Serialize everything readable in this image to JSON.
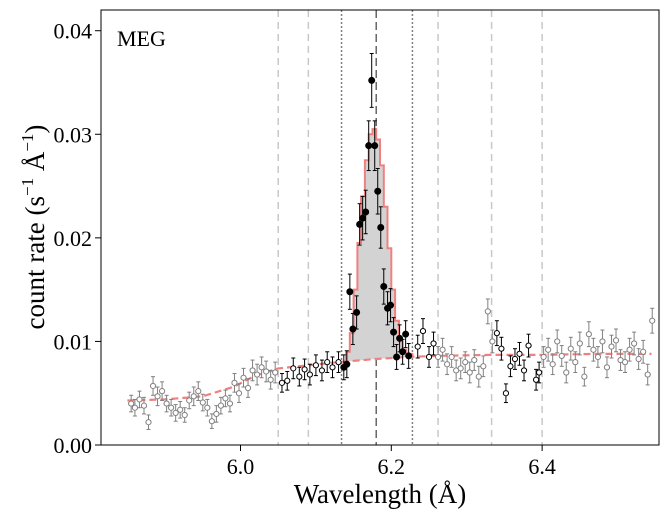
{
  "chart_data": {
    "type": "scatter",
    "panel_label": "MEG",
    "xlabel": "Wavelength (Å)",
    "ylabel_main": "count rate (s",
    "ylabel_sup1": "−1",
    "ylabel_mid": " Å",
    "ylabel_sup2": "−1",
    "ylabel_end": ")",
    "xlim": [
      5.815,
      6.555
    ],
    "ylim": [
      0.0,
      0.042
    ],
    "xticks": [
      6.0,
      6.2,
      6.4
    ],
    "xtick_labels": [
      "6.0",
      "6.2",
      "6.4"
    ],
    "yticks": [
      0.0,
      0.01,
      0.02,
      0.03,
      0.04
    ],
    "ytick_labels": [
      "0.00",
      "0.01",
      "0.02",
      "0.03",
      "0.04"
    ],
    "colors": {
      "axes": "#000000",
      "model": "#f08080",
      "fill": "#d3d3d3",
      "grey_points": "#808080",
      "fit_points": "#000000",
      "vline_light": "#c8c8c8",
      "vline_dotted": "#808080",
      "vline_dashed": "#666666"
    },
    "vlines": [
      {
        "x": 6.05,
        "style": "light-dashed"
      },
      {
        "x": 6.09,
        "style": "light-dashed"
      },
      {
        "x": 6.134,
        "style": "dotted"
      },
      {
        "x": 6.18,
        "style": "dashed"
      },
      {
        "x": 6.228,
        "style": "dotted"
      },
      {
        "x": 6.262,
        "style": "light-dashed"
      },
      {
        "x": 6.333,
        "style": "light-dashed"
      },
      {
        "x": 6.4,
        "style": "light-dashed"
      }
    ],
    "continuum": [
      [
        5.85,
        0.0043
      ],
      [
        5.9,
        0.0044
      ],
      [
        5.95,
        0.0047
      ],
      [
        5.99,
        0.0056
      ],
      [
        6.02,
        0.0067
      ],
      [
        6.05,
        0.0074
      ],
      [
        6.09,
        0.0077
      ],
      [
        6.13,
        0.008
      ],
      [
        6.18,
        0.0083
      ],
      [
        6.22,
        0.0085
      ],
      [
        6.26,
        0.0086
      ],
      [
        6.33,
        0.0087
      ],
      [
        6.4,
        0.0087
      ],
      [
        6.47,
        0.0088
      ],
      [
        6.545,
        0.0088
      ]
    ],
    "line_model": [
      [
        6.134,
        0.008
      ],
      [
        6.14,
        0.009
      ],
      [
        6.145,
        0.0108
      ],
      [
        6.15,
        0.015
      ],
      [
        6.155,
        0.0195
      ],
      [
        6.16,
        0.024
      ],
      [
        6.165,
        0.0275
      ],
      [
        6.17,
        0.03
      ],
      [
        6.175,
        0.0305
      ],
      [
        6.18,
        0.0295
      ],
      [
        6.185,
        0.027
      ],
      [
        6.19,
        0.023
      ],
      [
        6.195,
        0.019
      ],
      [
        6.2,
        0.015
      ],
      [
        6.205,
        0.012
      ],
      [
        6.21,
        0.01
      ],
      [
        6.215,
        0.0092
      ],
      [
        6.22,
        0.0088
      ],
      [
        6.228,
        0.0085
      ]
    ],
    "fit_points": [
      [
        6.055,
        0.006,
        0.0009
      ],
      [
        6.062,
        0.0062,
        0.0009
      ],
      [
        6.07,
        0.0074,
        0.001
      ],
      [
        6.078,
        0.0066,
        0.0009
      ],
      [
        6.085,
        0.0073,
        0.001
      ],
      [
        6.092,
        0.0068,
        0.001
      ],
      [
        6.1,
        0.0077,
        0.001
      ],
      [
        6.108,
        0.0072,
        0.001
      ],
      [
        6.115,
        0.008,
        0.001
      ],
      [
        6.122,
        0.0075,
        0.001
      ],
      [
        6.13,
        0.008,
        0.001
      ],
      [
        6.137,
        0.0075,
        0.0012
      ],
      [
        6.141,
        0.0078,
        0.0013
      ],
      [
        6.145,
        0.0148,
        0.0017
      ],
      [
        6.149,
        0.0112,
        0.0015
      ],
      [
        6.154,
        0.0128,
        0.0016
      ],
      [
        6.158,
        0.0213,
        0.002
      ],
      [
        6.162,
        0.0219,
        0.0021
      ],
      [
        6.166,
        0.0225,
        0.0021
      ],
      [
        6.17,
        0.0289,
        0.0024
      ],
      [
        6.174,
        0.0352,
        0.0026
      ],
      [
        6.178,
        0.0289,
        0.0024
      ],
      [
        6.182,
        0.0245,
        0.0022
      ],
      [
        6.186,
        0.021,
        0.002
      ],
      [
        6.19,
        0.0153,
        0.0017
      ],
      [
        6.195,
        0.0132,
        0.0016
      ],
      [
        6.199,
        0.0135,
        0.0016
      ],
      [
        6.203,
        0.0109,
        0.0014
      ],
      [
        6.207,
        0.0085,
        0.0012
      ],
      [
        6.211,
        0.0103,
        0.0013
      ],
      [
        6.215,
        0.009,
        0.0012
      ],
      [
        6.219,
        0.0107,
        0.0013
      ],
      [
        6.223,
        0.0086,
        0.0012
      ],
      [
        6.235,
        0.0095,
        0.0011
      ],
      [
        6.242,
        0.011,
        0.0012
      ],
      [
        6.25,
        0.0085,
        0.001
      ],
      [
        6.256,
        0.0098,
        0.0011
      ],
      [
        6.34,
        0.0108,
        0.0012
      ],
      [
        6.346,
        0.0093,
        0.0011
      ],
      [
        6.352,
        0.005,
        0.0009
      ],
      [
        6.358,
        0.0076,
        0.001
      ],
      [
        6.364,
        0.0083,
        0.001
      ],
      [
        6.37,
        0.0088,
        0.0011
      ],
      [
        6.376,
        0.0072,
        0.001
      ],
      [
        6.382,
        0.0096,
        0.0011
      ],
      [
        6.392,
        0.0063,
        0.001
      ],
      [
        6.396,
        0.007,
        0.001
      ]
    ],
    "grey_points": [
      [
        5.855,
        0.004,
        0.0008
      ],
      [
        5.86,
        0.0036,
        0.0008
      ],
      [
        5.866,
        0.0044,
        0.0008
      ],
      [
        5.872,
        0.0038,
        0.0008
      ],
      [
        5.878,
        0.0022,
        0.0007
      ],
      [
        5.884,
        0.0057,
        0.0009
      ],
      [
        5.89,
        0.0047,
        0.0009
      ],
      [
        5.896,
        0.0052,
        0.0009
      ],
      [
        5.902,
        0.004,
        0.0008
      ],
      [
        5.908,
        0.0036,
        0.0008
      ],
      [
        5.914,
        0.0031,
        0.0008
      ],
      [
        5.92,
        0.0034,
        0.0008
      ],
      [
        5.926,
        0.0029,
        0.0007
      ],
      [
        5.932,
        0.0043,
        0.0008
      ],
      [
        5.938,
        0.0047,
        0.0009
      ],
      [
        5.944,
        0.0052,
        0.0009
      ],
      [
        5.95,
        0.0041,
        0.0008
      ],
      [
        5.956,
        0.0036,
        0.0008
      ],
      [
        5.962,
        0.0023,
        0.0007
      ],
      [
        5.968,
        0.003,
        0.0008
      ],
      [
        5.974,
        0.0038,
        0.0008
      ],
      [
        5.98,
        0.0045,
        0.0008
      ],
      [
        5.986,
        0.004,
        0.0008
      ],
      [
        5.992,
        0.006,
        0.0009
      ],
      [
        5.998,
        0.005,
        0.0009
      ],
      [
        6.004,
        0.0065,
        0.0009
      ],
      [
        6.01,
        0.0055,
        0.0009
      ],
      [
        6.016,
        0.0072,
        0.001
      ],
      [
        6.022,
        0.0068,
        0.001
      ],
      [
        6.028,
        0.0075,
        0.001
      ],
      [
        6.034,
        0.0071,
        0.001
      ],
      [
        6.04,
        0.0063,
        0.0009
      ],
      [
        6.046,
        0.007,
        0.001
      ],
      [
        6.262,
        0.0085,
        0.001
      ],
      [
        6.268,
        0.0092,
        0.0011
      ],
      [
        6.274,
        0.0078,
        0.001
      ],
      [
        6.28,
        0.0085,
        0.001
      ],
      [
        6.286,
        0.0072,
        0.001
      ],
      [
        6.292,
        0.0074,
        0.001
      ],
      [
        6.298,
        0.008,
        0.001
      ],
      [
        6.304,
        0.007,
        0.001
      ],
      [
        6.31,
        0.0082,
        0.001
      ],
      [
        6.316,
        0.0066,
        0.001
      ],
      [
        6.322,
        0.0076,
        0.001
      ],
      [
        6.328,
        0.0129,
        0.0012
      ],
      [
        6.334,
        0.01,
        0.0011
      ],
      [
        6.402,
        0.0085,
        0.001
      ],
      [
        6.408,
        0.0092,
        0.0011
      ],
      [
        6.414,
        0.0078,
        0.001
      ],
      [
        6.42,
        0.01,
        0.0011
      ],
      [
        6.426,
        0.0086,
        0.001
      ],
      [
        6.432,
        0.007,
        0.001
      ],
      [
        6.438,
        0.0093,
        0.0011
      ],
      [
        6.444,
        0.008,
        0.001
      ],
      [
        6.45,
        0.0098,
        0.0011
      ],
      [
        6.456,
        0.0066,
        0.0009
      ],
      [
        6.462,
        0.0107,
        0.0012
      ],
      [
        6.468,
        0.0092,
        0.0011
      ],
      [
        6.474,
        0.0085,
        0.001
      ],
      [
        6.48,
        0.01,
        0.0011
      ],
      [
        6.486,
        0.0075,
        0.001
      ],
      [
        6.492,
        0.0095,
        0.0011
      ],
      [
        6.498,
        0.0101,
        0.0011
      ],
      [
        6.504,
        0.0082,
        0.001
      ],
      [
        6.51,
        0.008,
        0.001
      ],
      [
        6.516,
        0.0092,
        0.0011
      ],
      [
        6.522,
        0.0098,
        0.0011
      ],
      [
        6.528,
        0.0083,
        0.001
      ],
      [
        6.534,
        0.009,
        0.0011
      ],
      [
        6.54,
        0.0068,
        0.001
      ],
      [
        6.546,
        0.012,
        0.0012
      ]
    ]
  }
}
